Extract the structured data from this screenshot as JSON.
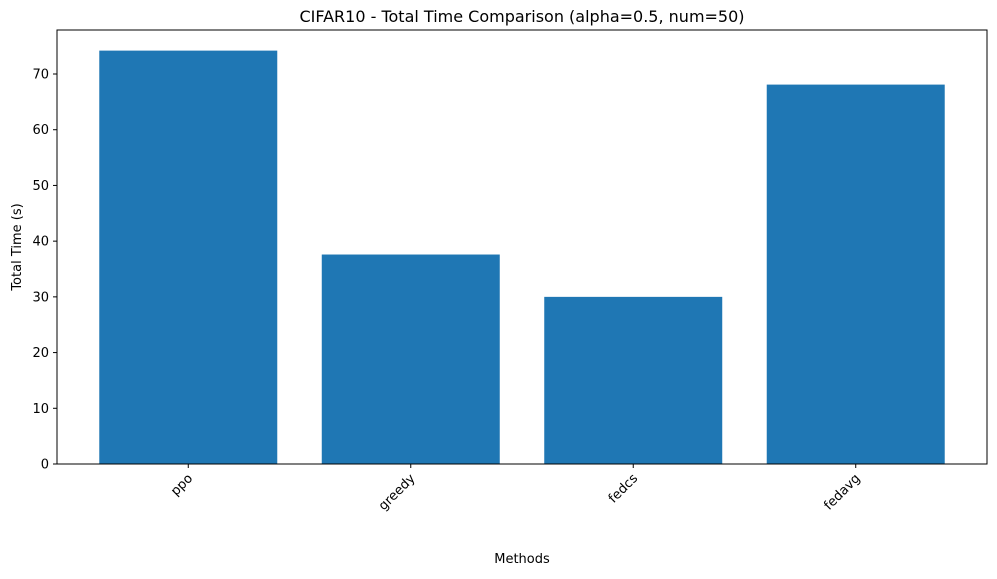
{
  "chart_data": {
    "type": "bar",
    "title": "CIFAR10 - Total Time Comparison (alpha=0.5, num=50)",
    "xlabel": "Methods",
    "ylabel": "Total Time (s)",
    "categories": [
      "ppo",
      "greedy",
      "fedcs",
      "fedavg"
    ],
    "values": [
      74.2,
      37.6,
      30.0,
      68.1
    ],
    "ylim": [
      0,
      77.9
    ],
    "yticks": [
      0,
      10,
      20,
      30,
      40,
      50,
      60,
      70
    ],
    "xtick_rotation": 45,
    "grid": false,
    "legend": "none",
    "bar_color": "#1f77b4"
  }
}
